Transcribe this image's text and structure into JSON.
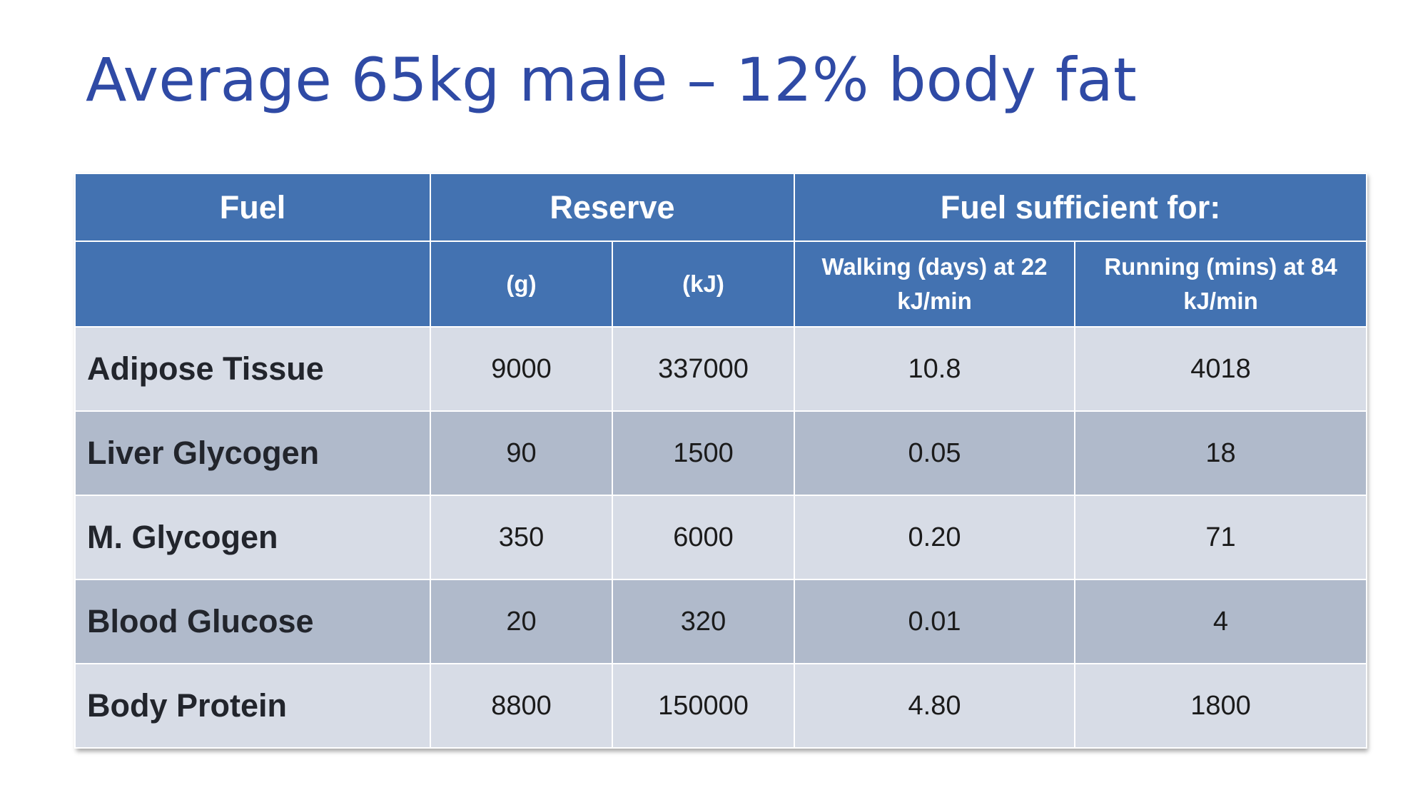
{
  "title": "Average 65kg male – 12% body fat",
  "table": {
    "header_top": {
      "fuel": "Fuel",
      "reserve": "Reserve",
      "sufficient": "Fuel sufficient for:"
    },
    "header_sub": {
      "fuel": "",
      "grams": "(g)",
      "kj": "(kJ)",
      "walking": "Walking (days) at 22 kJ/min",
      "running": "Running (mins) at 84 kJ/min"
    },
    "rows": [
      {
        "fuel": "Adipose Tissue",
        "grams": "9000",
        "kj": "337000",
        "walking": "10.8",
        "running": "4018"
      },
      {
        "fuel": "Liver Glycogen",
        "grams": "90",
        "kj": "1500",
        "walking": "0.05",
        "running": "18"
      },
      {
        "fuel": "M. Glycogen",
        "grams": "350",
        "kj": "6000",
        "walking": "0.20",
        "running": "71"
      },
      {
        "fuel": "Blood Glucose",
        "grams": "20",
        "kj": "320",
        "walking": "0.01",
        "running": "4"
      },
      {
        "fuel": "Body Protein",
        "grams": "8800",
        "kj": "150000",
        "walking": "4.80",
        "running": "1800"
      }
    ]
  },
  "colors": {
    "title": "#2f4aa5",
    "header_bg": "#4372b1",
    "row_light": "#d7dce6",
    "row_dark": "#b0bacb"
  }
}
